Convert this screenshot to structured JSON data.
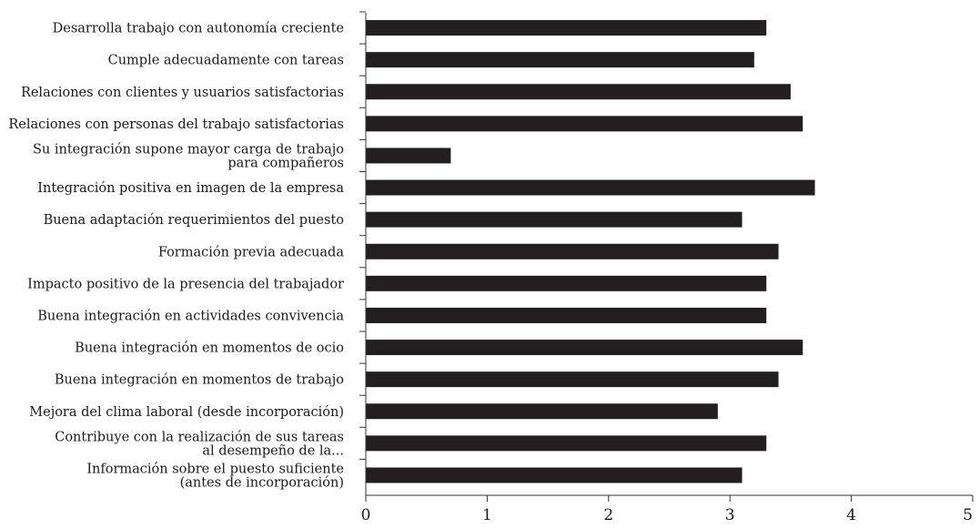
{
  "chart_data": {
    "type": "bar",
    "orientation": "horizontal",
    "title": "",
    "xlabel": "",
    "ylabel": "",
    "xlim": [
      0,
      5
    ],
    "xticks": [
      "0",
      "1",
      "2",
      "3",
      "4",
      "5"
    ],
    "grid": false,
    "legend": "none",
    "bar_color": "#231f20",
    "categories": [
      [
        "Desarrolla trabajo con autonomía creciente"
      ],
      [
        "Cumple adecuadamente con tareas"
      ],
      [
        "Relaciones con clientes y usuarios satisfactorias"
      ],
      [
        "Relaciones con personas del trabajo satisfactorias"
      ],
      [
        "Su integración supone mayor carga de trabajo",
        "para compañeros"
      ],
      [
        "Integración positiva en imagen de la empresa"
      ],
      [
        "Buena adaptación requerimientos del puesto"
      ],
      [
        "Formación previa adecuada"
      ],
      [
        "Impacto positivo de la presencia del trabajador"
      ],
      [
        "Buena integración en actividades convivencia"
      ],
      [
        "Buena integración en momentos de ocio"
      ],
      [
        "Buena integración en momentos de trabajo"
      ],
      [
        "Mejora del clima laboral (desde incorporación)"
      ],
      [
        "Contribuye con la realización de sus tareas",
        "al desempeño de la..."
      ],
      [
        "Información sobre el puesto suficiente",
        "(antes de incorporación)"
      ]
    ],
    "values": [
      3.3,
      3.2,
      3.5,
      3.6,
      0.7,
      3.7,
      3.1,
      3.4,
      3.3,
      3.3,
      3.6,
      3.4,
      2.9,
      3.3,
      3.1
    ]
  }
}
